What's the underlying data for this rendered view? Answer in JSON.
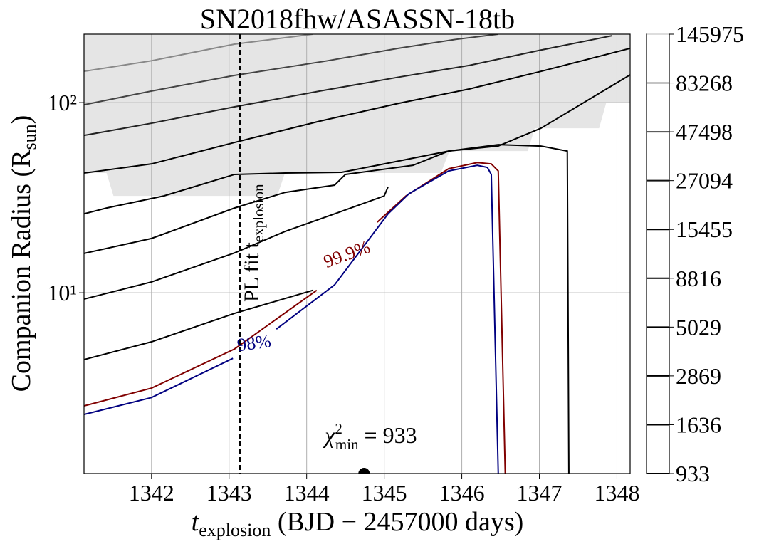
{
  "chart_data": {
    "type": "contour",
    "title": "SN2018fhw/ASASSN-18tb",
    "xlabel": {
      "base": "t",
      "sub": "explosion",
      "rest": " (BJD − 2457000 days)"
    },
    "ylabel": {
      "base": "Companion Radius (R",
      "sub": "sun",
      "rest": ")"
    },
    "xlim": [
      1341.13,
      1348.17
    ],
    "ylim": [
      1.12,
      229
    ],
    "yscale": "log",
    "grid": true,
    "xticks": [
      1342,
      1343,
      1344,
      1345,
      1346,
      1347,
      1348
    ],
    "yticks": [
      {
        "value": 10,
        "label": "10¹"
      },
      {
        "value": 100,
        "label": "10²"
      }
    ],
    "region": {
      "color": "#e5e5e5",
      "x": [
        1341.13,
        1341.42,
        1341.51,
        1343.62,
        1343.72,
        1345.73,
        1345.84,
        1346.85,
        1346.94,
        1347.77,
        1347.86,
        1348.17,
        1348.17,
        1341.13
      ],
      "y": [
        42.6,
        42.6,
        32.3,
        32.3,
        42.6,
        42.6,
        55.6,
        55.6,
        73.3,
        73.3,
        99.2,
        99.2,
        229,
        229
      ]
    },
    "series": [
      {
        "color": "#888888",
        "x": [
          1341.13,
          1342,
          1343.07,
          1344.08
        ],
        "y": [
          146,
          166,
          203,
          229
        ]
      },
      {
        "color": "#444444",
        "x": [
          1341.13,
          1342,
          1343.07,
          1344.27,
          1345.18,
          1345.92,
          1346.47
        ],
        "y": [
          97.4,
          115,
          139,
          166,
          193,
          215,
          229
        ]
      },
      {
        "color": "#222222",
        "x": [
          1341.13,
          1342,
          1343.07,
          1344.17,
          1345.18,
          1346.1,
          1347.02,
          1347.94
        ],
        "y": [
          67.2,
          77.9,
          95,
          115,
          136,
          157,
          189,
          225
        ]
      },
      {
        "color": "#000000",
        "x": [
          1341.13,
          1342,
          1343.07,
          1344.17,
          1345.18,
          1346.1,
          1347.02,
          1348.17
        ],
        "y": [
          42.6,
          47.6,
          61.7,
          79.9,
          99,
          118,
          146,
          193
        ]
      },
      {
        "color": "#000000",
        "x": [
          1341.13,
          1341.42,
          1342.16,
          1343.07,
          1343.72,
          1344.45,
          1344.91,
          1345.83,
          1346.47,
          1347.02,
          1348.17
        ],
        "y": [
          26.0,
          27.9,
          32.3,
          41.9,
          42.6,
          43,
          46.8,
          55.6,
          59.1,
          73.3,
          140
        ]
      },
      {
        "color": "#000000",
        "x": [
          1341.13,
          1342,
          1343.07,
          1343.72,
          1344.36,
          1344.5,
          1345.37,
          1345.83,
          1346.47,
          1347.02,
          1347.36,
          1347.38
        ],
        "y": [
          16.1,
          19.3,
          27.9,
          33.7,
          36.8,
          41.9,
          46.8,
          55.6,
          60.1,
          59.1,
          55.6,
          1.12
        ]
      },
      {
        "color": "#000000",
        "x": [
          1341.13,
          1342,
          1343.07,
          1343.72,
          1344.36,
          1345,
          1345.05
        ],
        "y": [
          9.26,
          11.4,
          16.2,
          21.0,
          26.0,
          32.3,
          36.1
        ]
      },
      {
        "color": "#000000",
        "x": [
          1341.13,
          1342,
          1343.07,
          1344.08
        ],
        "y": [
          4.45,
          5.52,
          7.79,
          10.3
        ]
      },
      {
        "name": "99.9%",
        "color": "#800000",
        "x": [
          1341.13,
          1342,
          1343.07,
          1344.13,
          null,
          1344.91,
          1345.28,
          1345.83,
          1346.2,
          1346.38,
          1346.47,
          1346.56
        ],
        "y": [
          2.54,
          3.15,
          5.06,
          10.3,
          null,
          23.5,
          32.3,
          44.9,
          48.4,
          47.6,
          43.7,
          1.12
        ]
      },
      {
        "name": "98%",
        "color": "#000080",
        "x": [
          1341.13,
          1342,
          1343.05,
          null,
          1343.61,
          1344.36,
          1345.05,
          1345.32,
          1345.83,
          1346.2,
          1346.33,
          1346.38,
          1346.47
        ],
        "y": [
          2.29,
          2.81,
          4.52,
          null,
          6.44,
          11.0,
          26.0,
          33.2,
          43.7,
          46.8,
          45.6,
          41.9,
          1.12
        ]
      }
    ],
    "vline": {
      "x": 1343.14,
      "label": {
        "base": "PL fit t",
        "sub": "explosion"
      }
    },
    "minimum": {
      "x": 1344.74,
      "y": 1.12,
      "label": {
        "base": "χ",
        "sup": "2",
        "sub": "min",
        "rest": " = 933"
      }
    },
    "colorbar": {
      "levels": [
        933,
        1636,
        2869,
        5029,
        8816,
        15455,
        27094,
        47498,
        83268,
        145975
      ],
      "colors": [
        "#000000",
        "#000000",
        "#000000",
        "#000000",
        "#000000",
        "#000000",
        "#111111",
        "#444444",
        "#888888",
        "#dddddd"
      ]
    }
  }
}
